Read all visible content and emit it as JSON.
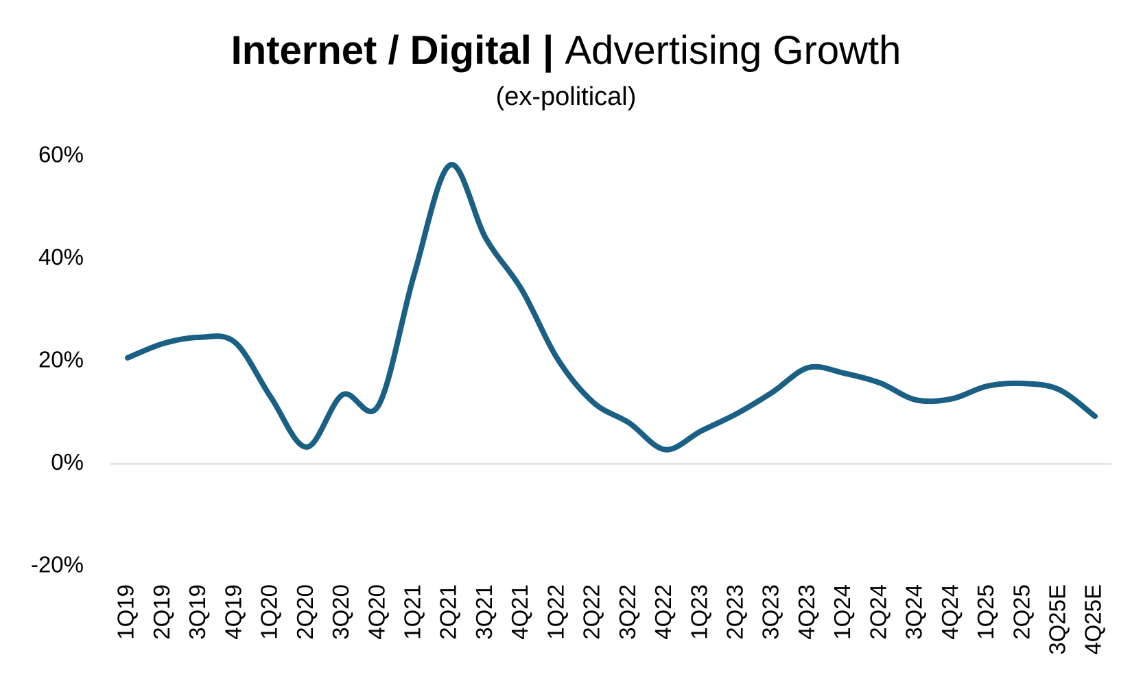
{
  "chart_data": {
    "type": "line",
    "title_bold": "Internet / Digital",
    "title_separator": " | ",
    "title_regular": "Advertising Growth",
    "subtitle": "(ex-political)",
    "xlabel": "",
    "ylabel": "",
    "ylim": [
      -0.2,
      0.6
    ],
    "yticks": [
      0.6,
      0.4,
      0.2,
      0.0,
      -0.2
    ],
    "ytick_labels": [
      "60%",
      "40%",
      "20%",
      "0%",
      "-20%"
    ],
    "grid": false,
    "categories": [
      "1Q19",
      "2Q19",
      "3Q19",
      "4Q19",
      "1Q20",
      "2Q20",
      "3Q20",
      "4Q20",
      "1Q21",
      "2Q21",
      "3Q21",
      "4Q21",
      "1Q22",
      "2Q22",
      "3Q22",
      "4Q22",
      "1Q23",
      "2Q23",
      "3Q23",
      "4Q23",
      "1Q24",
      "2Q24",
      "3Q24",
      "4Q24",
      "1Q25",
      "2Q25",
      "3Q25E",
      "4Q25E"
    ],
    "series": [
      {
        "name": "Internet / Digital Advertising Growth",
        "color": "#1a5f84",
        "values": [
          0.207,
          0.235,
          0.247,
          0.237,
          0.13,
          0.033,
          0.135,
          0.114,
          0.37,
          0.583,
          0.44,
          0.34,
          0.205,
          0.12,
          0.08,
          0.028,
          0.064,
          0.098,
          0.14,
          0.188,
          0.177,
          0.158,
          0.125,
          0.127,
          0.152,
          0.157,
          0.145,
          0.093
        ]
      }
    ],
    "colors": {
      "line": "#1a5f84",
      "zero_axis": "#d9d9d9",
      "text": "#000000"
    }
  }
}
